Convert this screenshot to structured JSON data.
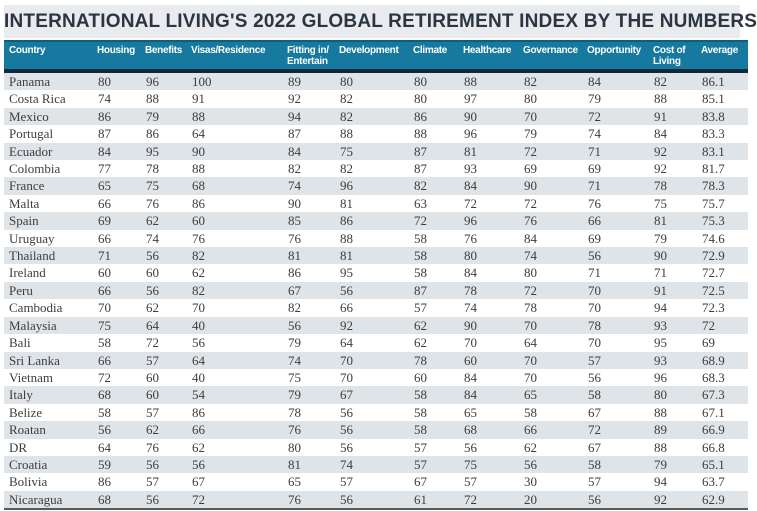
{
  "title": "INTERNATIONAL LIVING'S 2022 GLOBAL RETIREMENT INDEX BY THE NUMBERS",
  "colors": {
    "title_bg": "#e9ebee",
    "title_text": "#2c3542",
    "header_bg": "#16799f",
    "header_text": "#ffffff",
    "header_bottom_border": "#13293a",
    "row_stripe": "#dfe4e9",
    "body_text": "#3d3d3d"
  },
  "chart_data": {
    "type": "table",
    "title": "INTERNATIONAL LIVING'S 2022 GLOBAL RETIREMENT INDEX BY THE NUMBERS",
    "columns": [
      "Country",
      "Housing",
      "Benefits",
      "Visas/Residence",
      "Fitting in/\nEntertain",
      "Development",
      "Climate",
      "Healthcare",
      "Governance",
      "Opportunity",
      "Cost of\nLiving",
      "Average"
    ],
    "rows": [
      {
        "country": "Panama",
        "values": [
          80,
          96,
          100,
          89,
          80,
          80,
          88,
          82,
          84,
          82,
          86.1
        ]
      },
      {
        "country": "Costa Rica",
        "values": [
          74,
          88,
          91,
          92,
          82,
          80,
          97,
          80,
          79,
          88,
          85.1
        ]
      },
      {
        "country": "Mexico",
        "values": [
          86,
          79,
          88,
          94,
          82,
          86,
          90,
          70,
          72,
          91,
          83.8
        ]
      },
      {
        "country": "Portugal",
        "values": [
          87,
          86,
          64,
          87,
          88,
          88,
          96,
          79,
          74,
          84,
          83.3
        ]
      },
      {
        "country": "Ecuador",
        "values": [
          84,
          95,
          90,
          84,
          75,
          87,
          81,
          72,
          71,
          92,
          83.1
        ]
      },
      {
        "country": "Colombia",
        "values": [
          77,
          78,
          88,
          82,
          82,
          87,
          93,
          69,
          69,
          92,
          81.7
        ]
      },
      {
        "country": "France",
        "values": [
          65,
          75,
          68,
          74,
          96,
          82,
          84,
          90,
          71,
          78,
          78.3
        ]
      },
      {
        "country": "Malta",
        "values": [
          66,
          76,
          86,
          90,
          81,
          63,
          72,
          72,
          76,
          75,
          75.7
        ]
      },
      {
        "country": "Spain",
        "values": [
          69,
          62,
          60,
          85,
          86,
          72,
          96,
          76,
          66,
          81,
          75.3
        ]
      },
      {
        "country": "Uruguay",
        "values": [
          66,
          74,
          76,
          76,
          88,
          58,
          76,
          84,
          69,
          79,
          74.6
        ]
      },
      {
        "country": "Thailand",
        "values": [
          71,
          56,
          82,
          81,
          81,
          58,
          80,
          74,
          56,
          90,
          72.9
        ]
      },
      {
        "country": "Ireland",
        "values": [
          60,
          60,
          62,
          86,
          95,
          58,
          84,
          80,
          71,
          71,
          72.7
        ]
      },
      {
        "country": "Peru",
        "values": [
          66,
          56,
          82,
          67,
          56,
          87,
          78,
          72,
          70,
          91,
          72.5
        ]
      },
      {
        "country": "Cambodia",
        "values": [
          70,
          62,
          70,
          82,
          66,
          57,
          74,
          78,
          70,
          94,
          72.3
        ]
      },
      {
        "country": "Malaysia",
        "values": [
          75,
          64,
          40,
          56,
          92,
          62,
          90,
          70,
          78,
          93,
          72
        ]
      },
      {
        "country": "Bali",
        "values": [
          58,
          72,
          56,
          79,
          64,
          62,
          70,
          64,
          70,
          95,
          69
        ]
      },
      {
        "country": "Sri Lanka",
        "values": [
          66,
          57,
          64,
          74,
          70,
          78,
          60,
          70,
          57,
          93,
          68.9
        ]
      },
      {
        "country": "Vietnam",
        "values": [
          72,
          60,
          40,
          75,
          70,
          60,
          84,
          70,
          56,
          96,
          68.3
        ]
      },
      {
        "country": "Italy",
        "values": [
          68,
          60,
          54,
          79,
          67,
          58,
          84,
          65,
          58,
          80,
          67.3
        ]
      },
      {
        "country": "Belize",
        "values": [
          58,
          57,
          86,
          78,
          56,
          58,
          65,
          58,
          67,
          88,
          67.1
        ]
      },
      {
        "country": "Roatan",
        "values": [
          56,
          62,
          66,
          76,
          56,
          58,
          68,
          66,
          72,
          89,
          66.9
        ]
      },
      {
        "country": "DR",
        "values": [
          64,
          76,
          62,
          80,
          56,
          57,
          56,
          62,
          67,
          88,
          66.8
        ]
      },
      {
        "country": "Croatia",
        "values": [
          59,
          56,
          56,
          81,
          74,
          57,
          75,
          56,
          58,
          79,
          65.1
        ]
      },
      {
        "country": "Bolivia",
        "values": [
          86,
          57,
          67,
          65,
          57,
          67,
          57,
          30,
          57,
          94,
          63.7
        ]
      },
      {
        "country": "Nicaragua",
        "values": [
          68,
          56,
          72,
          76,
          56,
          61,
          72,
          20,
          56,
          92,
          62.9
        ]
      }
    ]
  }
}
